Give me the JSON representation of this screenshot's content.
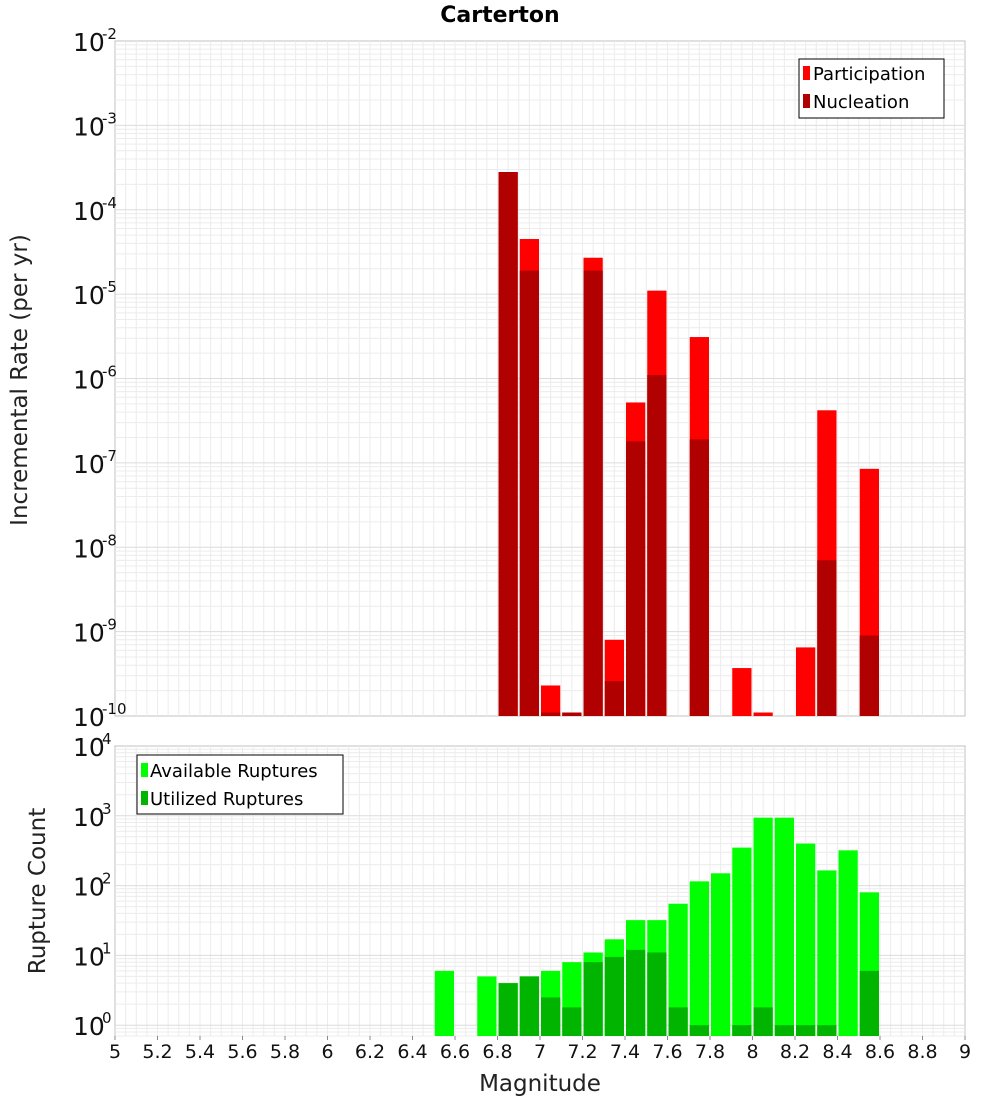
{
  "chart_data": [
    {
      "type": "bar",
      "title": "Carterton",
      "ylabel": "Incremental Rate (per yr)",
      "xlabel": "",
      "yscale": "log",
      "ylim": [
        1e-10,
        0.01
      ],
      "xlim": [
        5,
        9
      ],
      "bar_width": 0.1,
      "y_tick_labels": [
        {
          "base": "10",
          "exp": "-2",
          "value": 0.01
        },
        {
          "base": "10",
          "exp": "-3",
          "value": 0.001
        },
        {
          "base": "10",
          "exp": "-4",
          "value": 0.0001
        },
        {
          "base": "10",
          "exp": "-5",
          "value": 1e-05
        },
        {
          "base": "10",
          "exp": "-6",
          "value": 1e-06
        },
        {
          "base": "10",
          "exp": "-7",
          "value": 1e-07
        },
        {
          "base": "10",
          "exp": "-8",
          "value": 1e-08
        },
        {
          "base": "10",
          "exp": "-9",
          "value": 1e-09
        },
        {
          "base": "10",
          "exp": "-10",
          "value": 1e-10
        }
      ],
      "legend_position": "top-right",
      "legend": [
        "Participation",
        "Nucleation"
      ],
      "grid": true,
      "series": [
        {
          "name": "Participation",
          "color": "#ff0000",
          "x": [
            6.85,
            6.95,
            7.05,
            7.15,
            7.25,
            7.35,
            7.45,
            7.55,
            7.75,
            7.95,
            8.05,
            8.25,
            8.35,
            8.55
          ],
          "values": [
            0.00028,
            4.5e-05,
            2.3e-10,
            1.1e-10,
            2.7e-05,
            8e-10,
            5.2e-07,
            1.1e-05,
            3.1e-06,
            3.7e-10,
            1.1e-10,
            6.5e-10,
            4.2e-07,
            8.5e-08
          ]
        },
        {
          "name": "Nucleation",
          "color": "#b00000",
          "x": [
            6.85,
            6.95,
            7.05,
            7.15,
            7.25,
            7.35,
            7.45,
            7.55,
            7.75,
            8.35,
            8.55
          ],
          "values": [
            0.00028,
            1.9e-05,
            1.1e-10,
            1.1e-10,
            1.9e-05,
            2.6e-10,
            1.8e-07,
            1.1e-06,
            1.9e-07,
            7e-09,
            9e-10
          ]
        }
      ]
    },
    {
      "type": "bar",
      "title": "",
      "ylabel": "Rupture Count",
      "xlabel": "Magnitude",
      "yscale": "log",
      "ylim": [
        0.7,
        10000
      ],
      "xlim": [
        5,
        9
      ],
      "bar_width": 0.1,
      "y_tick_labels": [
        {
          "base": "10",
          "exp": "4",
          "value": 10000
        },
        {
          "base": "10",
          "exp": "3",
          "value": 1000
        },
        {
          "base": "10",
          "exp": "2",
          "value": 100
        },
        {
          "base": "10",
          "exp": "1",
          "value": 10
        },
        {
          "base": "10",
          "exp": "0",
          "value": 1
        }
      ],
      "x_ticks": [
        "5",
        "5.2",
        "5.4",
        "5.6",
        "5.8",
        "6",
        "6.2",
        "6.4",
        "6.6",
        "6.8",
        "7",
        "7.2",
        "7.4",
        "7.6",
        "7.8",
        "8",
        "8.2",
        "8.4",
        "8.6",
        "8.8",
        "9"
      ],
      "legend_position": "top-left",
      "legend": [
        "Available Ruptures",
        "Utilized Ruptures"
      ],
      "grid": true,
      "series": [
        {
          "name": "Available Ruptures",
          "color": "#00ff00",
          "x": [
            6.55,
            6.75,
            6.85,
            6.95,
            7.05,
            7.15,
            7.25,
            7.35,
            7.45,
            7.55,
            7.65,
            7.75,
            7.85,
            7.95,
            8.05,
            8.15,
            8.25,
            8.35,
            8.45,
            8.55
          ],
          "values": [
            6,
            5,
            4,
            5,
            6,
            8,
            11,
            17,
            32,
            32,
            55,
            115,
            150,
            350,
            940,
            940,
            400,
            165,
            320,
            80
          ]
        },
        {
          "name": "Utilized Ruptures",
          "color": "#00b400",
          "x": [
            6.85,
            6.95,
            7.05,
            7.15,
            7.25,
            7.35,
            7.45,
            7.55,
            7.65,
            7.75,
            7.95,
            8.05,
            8.15,
            8.25,
            8.35,
            8.55
          ],
          "values": [
            4,
            5,
            2.5,
            1.8,
            8,
            9.5,
            12,
            11,
            1.8,
            1,
            1,
            1.8,
            1,
            1,
            1,
            6
          ]
        }
      ]
    }
  ]
}
